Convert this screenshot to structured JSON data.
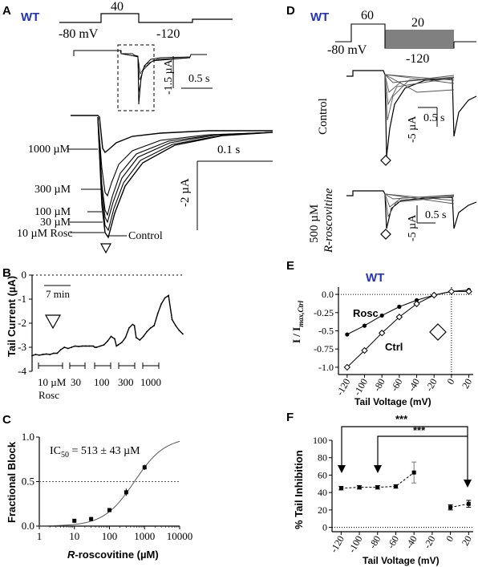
{
  "panels": {
    "A": {
      "letter": "A",
      "genotype": "WT",
      "protocol": {
        "step": "40",
        "hold": "-80 mV",
        "tail": "-120"
      },
      "scale_top": {
        "current": "-1.5 µA",
        "time": "0.5 s"
      },
      "scale_main": {
        "time": "0.1 s",
        "current": "-2 µA"
      },
      "trace_labels": [
        "1000 µM",
        "300 µM",
        "100 µM",
        "30 µM",
        "10 µM Rosc",
        "Control"
      ]
    },
    "B": {
      "letter": "B",
      "ylabel": "Tail Current (µA)",
      "time_scale": "7 min",
      "doses": [
        "10 µM",
        "30",
        "100",
        "300",
        "1000"
      ],
      "drug": "Rosc"
    },
    "C": {
      "letter": "C",
      "ic50_prefix": "IC",
      "ic50_sub": "50",
      "ic50_value": " = 513 ± 43 µM"
    },
    "D": {
      "letter": "D",
      "genotype": "WT",
      "protocol": {
        "step": "60",
        "tail_start": "20",
        "hold": "-80 mV",
        "tail_end": "-120"
      },
      "conditions": [
        "Control",
        "500 µM",
        "R-roscovitine"
      ],
      "scale": {
        "time": "0.5 s",
        "current": "-5 µA"
      }
    },
    "E": {
      "letter": "E",
      "genotype": "WT",
      "series_labels": [
        "Rosc",
        "Ctrl"
      ]
    },
    "F": {
      "letter": "F",
      "significance": [
        "***",
        "***"
      ]
    }
  },
  "colors": {
    "genotype": "#2233bb",
    "ink": "#000000",
    "fit": "#555555"
  },
  "chart_data": [
    {
      "panel": "B",
      "type": "line",
      "ylabel": "Tail Current (µA)",
      "ylim": [
        -4,
        0
      ],
      "yticks": [
        0,
        -1,
        -2,
        -3,
        -4
      ],
      "x_unit": "min",
      "xlim": [
        0,
        42
      ],
      "series": [
        {
          "x": [
            0,
            1,
            2,
            3,
            4,
            5,
            6,
            7,
            8,
            9,
            10,
            11,
            12,
            13,
            14,
            15,
            16,
            17,
            17.5,
            18,
            19,
            20,
            21,
            22,
            23,
            23.5,
            24,
            25,
            26,
            27,
            28,
            28.5,
            29,
            30,
            31,
            32,
            33,
            34,
            35,
            36,
            37,
            38,
            39,
            40,
            41,
            42
          ],
          "values": [
            -3.35,
            -3.3,
            -3.33,
            -3.3,
            -3.28,
            -3.3,
            -3.25,
            -3.25,
            -3.1,
            -3.0,
            -3.05,
            -3.0,
            -2.95,
            -2.97,
            -2.95,
            -2.95,
            -2.95,
            -2.95,
            -3.0,
            -3.0,
            -2.95,
            -2.9,
            -2.75,
            -2.55,
            -2.65,
            -2.95,
            -2.9,
            -2.8,
            -2.6,
            -2.2,
            -2.05,
            -2.1,
            -2.6,
            -2.7,
            -2.55,
            -2.35,
            -2.2,
            -2.1,
            -1.6,
            -1.2,
            -0.95,
            -0.85,
            -1.85,
            -2.1,
            -2.3,
            -2.45
          ]
        }
      ]
    },
    {
      "panel": "C",
      "type": "scatter",
      "xlabel": "R-roscovitine (µM)",
      "ylabel": "Fractional Block",
      "xscale": "log",
      "xlim": [
        1,
        10000
      ],
      "ylim": [
        0,
        1
      ],
      "xticks": [
        1,
        10,
        100,
        1000,
        10000
      ],
      "yticks": [
        0.0,
        0.5,
        1.0
      ],
      "x": [
        10,
        30,
        100,
        300,
        1000
      ],
      "values": [
        0.06,
        0.08,
        0.18,
        0.38,
        0.66
      ],
      "error": [
        0.01,
        0.01,
        0.02,
        0.04,
        0.03
      ],
      "fit": {
        "ic50": 513,
        "hill": 1.0,
        "max": 1.0
      },
      "reference_line": 0.5
    },
    {
      "panel": "E",
      "type": "line",
      "xlabel": "Tail Voltage (mV)",
      "ylabel": "I / I max,Ctrl",
      "xlim": [
        -130,
        25
      ],
      "ylim": [
        -1.1,
        0.1
      ],
      "xticks": [
        -120,
        -100,
        -80,
        -60,
        -40,
        -20,
        0,
        20
      ],
      "yticks": [
        0.0,
        -0.25,
        -0.5,
        -0.75,
        -1.0
      ],
      "x": [
        -120,
        -100,
        -80,
        -60,
        -40,
        -20,
        0,
        20
      ],
      "series": [
        {
          "name": "Rosc",
          "marker": "filled-circle",
          "values": [
            -0.55,
            -0.43,
            -0.29,
            -0.17,
            -0.08,
            -0.01,
            0.04,
            0.06
          ]
        },
        {
          "name": "Ctrl",
          "marker": "open-diamond",
          "values": [
            -1.0,
            -0.77,
            -0.53,
            -0.31,
            -0.13,
            -0.01,
            0.04,
            0.04
          ]
        }
      ]
    },
    {
      "panel": "F",
      "type": "scatter",
      "xlabel": "Tail Voltage (mV)",
      "ylabel": "% Tail Inhibition",
      "xlim": [
        -130,
        25
      ],
      "ylim": [
        -5,
        100
      ],
      "xticks": [
        -120,
        -100,
        -80,
        -60,
        -40,
        -20,
        0,
        20
      ],
      "yticks": [
        0,
        20,
        40,
        60,
        80,
        100
      ],
      "x": [
        -120,
        -100,
        -80,
        -60,
        -40,
        0,
        20
      ],
      "values": [
        45,
        46,
        46,
        47,
        63,
        23,
        27
      ],
      "error": [
        2,
        2,
        2,
        2,
        12,
        3,
        4
      ],
      "reference_line": 0
    }
  ]
}
